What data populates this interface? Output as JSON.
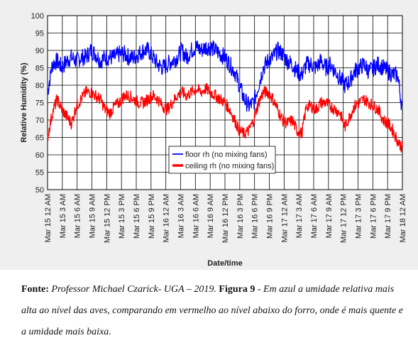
{
  "chart_data": {
    "type": "line",
    "title": "",
    "xlabel": "Date/time",
    "ylabel": "Relative Humidity (%)",
    "ylim": [
      50,
      100
    ],
    "yticks": [
      50,
      55,
      60,
      65,
      70,
      75,
      80,
      85,
      90,
      95,
      100
    ],
    "xticks": [
      "Mar 15 12 AM",
      "Mar 15 3 AM",
      "Mar 15 6 AM",
      "Mar 15 9 AM",
      "Mar 15 12 PM",
      "Mar 15 3 PM",
      "Mar 15 6 PM",
      "Mar 15 9 PM",
      "Mar 16 12 AM",
      "Mar 16 3 AM",
      "Mar 16 6 AM",
      "Mar 16 9 AM",
      "Mar 16 12 PM",
      "Mar 16 3 PM",
      "Mar 16 6 PM",
      "Mar 16 9 PM",
      "Mar 17 12 AM",
      "Mar 17 3 AM",
      "Mar 17 6 AM",
      "Mar 17 9 AM",
      "Mar 17 12 PM",
      "Mar 17 3 PM",
      "Mar 17 6 PM",
      "Mar 17 9 PM",
      "Mar 18 12 AM"
    ],
    "grid": true,
    "legend_position": "lower-center",
    "series": [
      {
        "name": "floor rh (no mixing fans)",
        "color": "#0000ff",
        "values": [
          78,
          86,
          87,
          85,
          87,
          88,
          87,
          88,
          88,
          90,
          89,
          87,
          88,
          88,
          88,
          89,
          89,
          88,
          88,
          89,
          90,
          90,
          88,
          86,
          85,
          86,
          87,
          88,
          90,
          88,
          90,
          91,
          90,
          91,
          91,
          90,
          89,
          88,
          86,
          84,
          80,
          76,
          74,
          75,
          80,
          85,
          87,
          88,
          90,
          89,
          87,
          86,
          84,
          83,
          86,
          86,
          85,
          87,
          85,
          86,
          84,
          82,
          80,
          81,
          84,
          85,
          86,
          84,
          85,
          86,
          85,
          84,
          83,
          83,
          73
        ]
      },
      {
        "name": "ceiling rh (no mixing fans)",
        "color": "#ff0000",
        "values": [
          65,
          72,
          76,
          73,
          71,
          69,
          74,
          76,
          78,
          78,
          77,
          76,
          73,
          72,
          74,
          75,
          77,
          77,
          76,
          75,
          75,
          76,
          77,
          76,
          74,
          73,
          75,
          77,
          78,
          77,
          78,
          79,
          78,
          79,
          78,
          77,
          76,
          75,
          73,
          70,
          67,
          66,
          67,
          70,
          75,
          78,
          78,
          76,
          73,
          70,
          69,
          70,
          67,
          66,
          74,
          74,
          73,
          75,
          75,
          74,
          73,
          72,
          68,
          71,
          74,
          75,
          76,
          75,
          74,
          73,
          70,
          69,
          67,
          64,
          62
        ]
      }
    ]
  },
  "caption": {
    "source_label": "Fonte:",
    "source_text": "Professor Michael Czarick- UGA – 2019.",
    "figure_label": "Figura 9",
    "figure_text": "- Em azul a umidade relativa mais alta ao nível das aves, comparando em vermelho ao nível abaixo do forro, onde é mais quente e a umidade mais baixa."
  }
}
